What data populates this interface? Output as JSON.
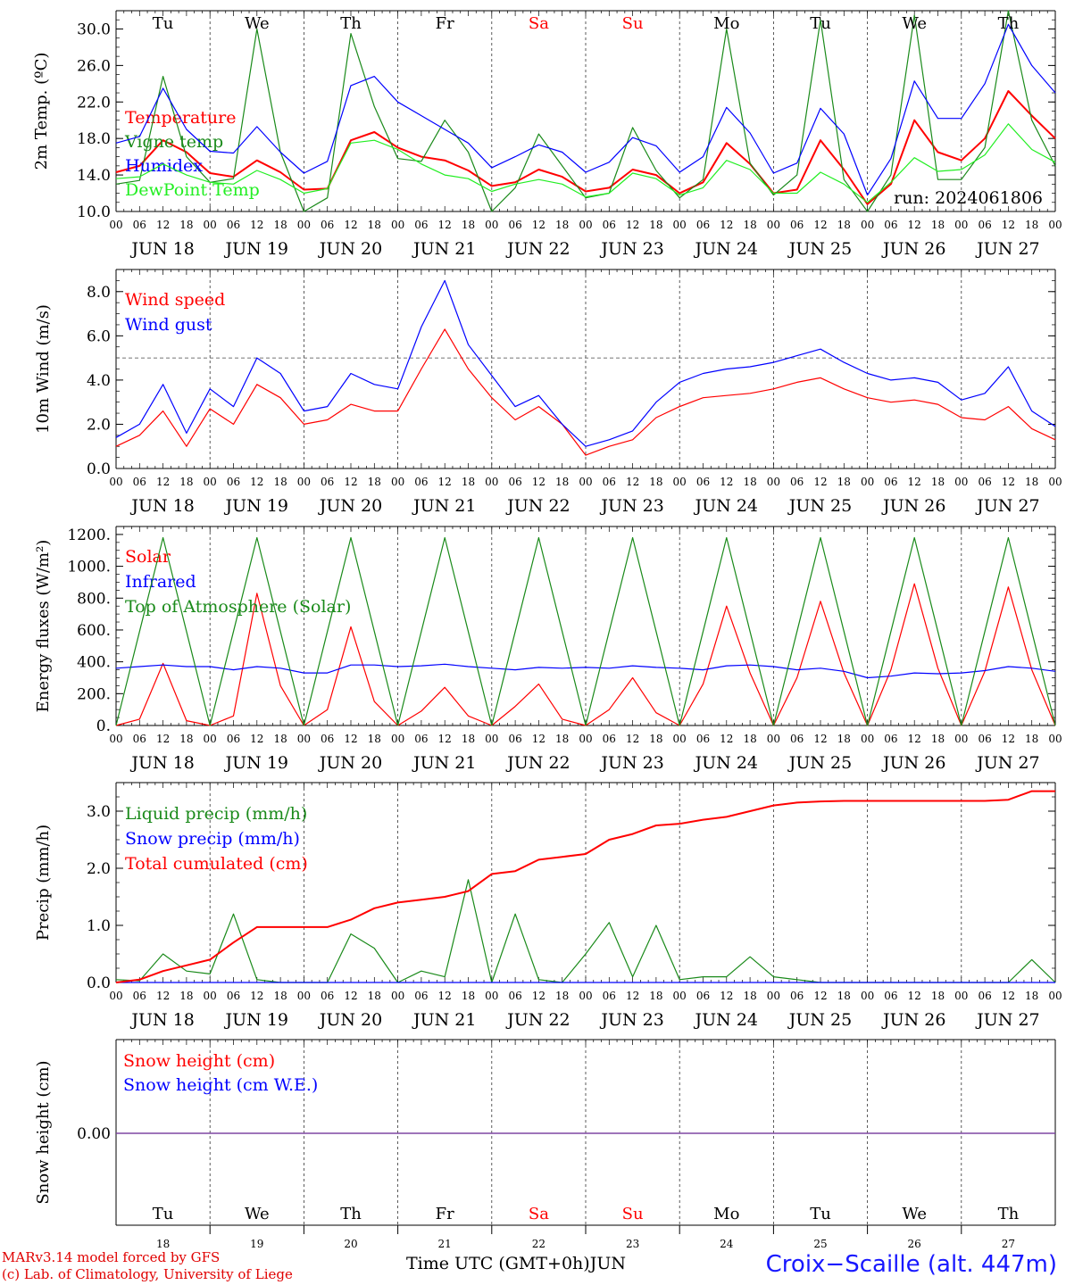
{
  "days": [
    {
      "abbr": "Tu",
      "date": "JUN 18",
      "num": "18",
      "weekend": false
    },
    {
      "abbr": "We",
      "date": "JUN 19",
      "num": "19",
      "weekend": false
    },
    {
      "abbr": "Th",
      "date": "JUN 20",
      "num": "20",
      "weekend": false
    },
    {
      "abbr": "Fr",
      "date": "JUN 21",
      "num": "21",
      "weekend": false
    },
    {
      "abbr": "Sa",
      "date": "JUN 22",
      "num": "22",
      "weekend": true
    },
    {
      "abbr": "Su",
      "date": "JUN 23",
      "num": "23",
      "weekend": true
    },
    {
      "abbr": "Mo",
      "date": "JUN 24",
      "num": "24",
      "weekend": false
    },
    {
      "abbr": "Tu",
      "date": "JUN 25",
      "num": "25",
      "weekend": false
    },
    {
      "abbr": "We",
      "date": "JUN 26",
      "num": "26",
      "weekend": false
    },
    {
      "abbr": "Th",
      "date": "JUN 27",
      "num": "27",
      "weekend": false
    }
  ],
  "hour_ticks": [
    "00",
    "06",
    "12",
    "18"
  ],
  "last_hour_tick": "00",
  "run_label": "run: 2024061806",
  "time_axis_label": "Time UTC (GMT+0h)",
  "month_label": "JUN",
  "credit_line1": "MARv3.14 model forced by GFS",
  "credit_line2": "(c) Lab. of Climatology, University of Liege",
  "station": "Croix−Scaille (alt. 447m)",
  "colors": {
    "red": "#ff0000",
    "blue": "#0000ff",
    "green": "#1a8a1a",
    "lightgreen": "#22ee22",
    "purple": "#7a3fa0"
  },
  "chart_data": [
    {
      "type": "line",
      "ylabel": "2m Temp. (ºC)",
      "ylim": [
        10,
        32
      ],
      "yticks": [
        10,
        14,
        18,
        22,
        26,
        30
      ],
      "ytick_labels": [
        "10.0",
        "14.0",
        "18.0",
        "22.0",
        "26.0",
        "30.0"
      ],
      "x": [
        "06-18 00",
        "06-18 06",
        "06-18 12",
        "06-18 18",
        "06-19 00",
        "06-19 06",
        "06-19 12",
        "06-19 18",
        "06-20 00",
        "06-20 06",
        "06-20 12",
        "06-20 18",
        "06-21 00",
        "06-21 06",
        "06-21 12",
        "06-21 18",
        "06-22 00",
        "06-22 06",
        "06-22 12",
        "06-22 18",
        "06-23 00",
        "06-23 06",
        "06-23 12",
        "06-23 18",
        "06-24 00",
        "06-24 06",
        "06-24 12",
        "06-24 18",
        "06-25 00",
        "06-25 06",
        "06-25 12",
        "06-25 18",
        "06-26 00",
        "06-26 06",
        "06-26 12",
        "06-26 18",
        "06-27 00",
        "06-27 06",
        "06-27 12",
        "06-27 18",
        "06-28 00"
      ],
      "series": [
        {
          "name": "Temperature",
          "color": "red",
          "values": [
            14.3,
            15.0,
            17.8,
            16.5,
            14.2,
            13.8,
            15.6,
            14.3,
            12.4,
            12.5,
            17.8,
            18.7,
            17.0,
            16.0,
            15.6,
            14.5,
            12.8,
            13.2,
            14.6,
            13.8,
            12.2,
            12.6,
            14.6,
            14.0,
            12.0,
            13.2,
            17.5,
            15.2,
            12.0,
            12.4,
            17.8,
            14.6,
            10.8,
            13.0,
            20.0,
            16.5,
            15.6,
            18.0,
            23.2,
            20.5,
            18.0
          ]
        },
        {
          "name": "Vigne temp",
          "color": "green",
          "values": [
            13.0,
            13.4,
            24.8,
            16.0,
            13.2,
            13.6,
            30.0,
            16.5,
            10.0,
            11.5,
            29.5,
            21.5,
            15.8,
            15.5,
            20.0,
            16.5,
            10.0,
            12.6,
            18.5,
            15.0,
            11.5,
            12.0,
            19.2,
            14.5,
            11.5,
            13.5,
            30.0,
            15.3,
            11.8,
            14.0,
            31.0,
            13.5,
            8.5,
            14.0,
            31.5,
            13.5,
            13.5,
            17.0,
            32.0,
            20.0,
            15.0
          ]
        },
        {
          "name": "Humidex",
          "color": "blue",
          "values": [
            17.5,
            18.2,
            23.5,
            19.0,
            16.6,
            16.4,
            19.3,
            16.5,
            14.2,
            15.5,
            23.8,
            24.8,
            22.0,
            20.5,
            19.0,
            17.5,
            14.8,
            16.0,
            17.3,
            16.5,
            14.3,
            15.4,
            18.1,
            17.2,
            14.3,
            16.0,
            21.4,
            18.6,
            14.2,
            15.3,
            21.3,
            18.5,
            11.8,
            15.8,
            24.3,
            20.2,
            20.2,
            24.0,
            30.5,
            26.0,
            23.0
          ]
        },
        {
          "name": "DewPoint Temp",
          "color": "lightgreen",
          "values": [
            13.6,
            13.8,
            15.2,
            14.0,
            13.2,
            13.0,
            14.5,
            13.5,
            12.0,
            12.5,
            17.5,
            17.8,
            16.8,
            15.2,
            14.0,
            13.6,
            12.2,
            13.0,
            13.5,
            13.0,
            11.6,
            12.0,
            14.2,
            13.6,
            11.8,
            12.6,
            15.6,
            14.6,
            12.0,
            12.0,
            14.3,
            13.0,
            11.0,
            13.2,
            15.9,
            14.4,
            14.6,
            16.2,
            19.6,
            16.8,
            15.4
          ]
        }
      ]
    },
    {
      "type": "line",
      "ylabel": "10m Wind (m/s)",
      "ylim": [
        0,
        9
      ],
      "yticks": [
        0,
        2,
        4,
        6,
        8
      ],
      "ytick_labels": [
        "0.0",
        "2.0",
        "4.0",
        "6.0",
        "8.0"
      ],
      "reference_line": 5.0,
      "x": [
        "06-18 00",
        "06-18 06",
        "06-18 12",
        "06-18 18",
        "06-19 00",
        "06-19 06",
        "06-19 12",
        "06-19 18",
        "06-20 00",
        "06-20 06",
        "06-20 12",
        "06-20 18",
        "06-21 00",
        "06-21 06",
        "06-21 12",
        "06-21 18",
        "06-22 00",
        "06-22 06",
        "06-22 12",
        "06-22 18",
        "06-23 00",
        "06-23 06",
        "06-23 12",
        "06-23 18",
        "06-24 00",
        "06-24 06",
        "06-24 12",
        "06-24 18",
        "06-25 00",
        "06-25 06",
        "06-25 12",
        "06-25 18",
        "06-26 00",
        "06-26 06",
        "06-26 12",
        "06-26 18",
        "06-27 00",
        "06-27 06",
        "06-27 12",
        "06-27 18",
        "06-28 00"
      ],
      "series": [
        {
          "name": "Wind speed",
          "color": "red",
          "values": [
            1.0,
            1.5,
            2.6,
            1.0,
            2.7,
            2.0,
            3.8,
            3.2,
            2.0,
            2.2,
            2.9,
            2.6,
            2.6,
            4.5,
            6.3,
            4.5,
            3.2,
            2.2,
            2.8,
            2.0,
            0.6,
            1.0,
            1.3,
            2.3,
            2.8,
            3.2,
            3.3,
            3.4,
            3.6,
            3.9,
            4.1,
            3.6,
            3.2,
            3.0,
            3.1,
            2.9,
            2.3,
            2.2,
            2.8,
            1.8,
            1.3
          ]
        },
        {
          "name": "Wind gust",
          "color": "blue",
          "values": [
            1.4,
            2.0,
            3.8,
            1.6,
            3.6,
            2.8,
            5.0,
            4.3,
            2.6,
            2.8,
            4.3,
            3.8,
            3.6,
            6.4,
            8.5,
            5.6,
            4.2,
            2.8,
            3.3,
            2.0,
            1.0,
            1.3,
            1.7,
            3.0,
            3.9,
            4.3,
            4.5,
            4.6,
            4.8,
            5.1,
            5.4,
            4.8,
            4.3,
            4.0,
            4.1,
            3.9,
            3.1,
            3.4,
            4.6,
            2.6,
            1.9
          ]
        }
      ]
    },
    {
      "type": "line",
      "ylabel": "Energy fluxes (W/m²)",
      "ylim": [
        0,
        1250
      ],
      "yticks": [
        0,
        200,
        400,
        600,
        800,
        1000,
        1200
      ],
      "ytick_labels": [
        "0.",
        "200.",
        "400.",
        "600.",
        "800.",
        "1000.",
        "1200."
      ],
      "x": [
        "06-18 00",
        "06-18 06",
        "06-18 12",
        "06-18 18",
        "06-19 00",
        "06-19 06",
        "06-19 12",
        "06-19 18",
        "06-20 00",
        "06-20 06",
        "06-20 12",
        "06-20 18",
        "06-21 00",
        "06-21 06",
        "06-21 12",
        "06-21 18",
        "06-22 00",
        "06-22 06",
        "06-22 12",
        "06-22 18",
        "06-23 00",
        "06-23 06",
        "06-23 12",
        "06-23 18",
        "06-24 00",
        "06-24 06",
        "06-24 12",
        "06-24 18",
        "06-25 00",
        "06-25 06",
        "06-25 12",
        "06-25 18",
        "06-26 00",
        "06-26 06",
        "06-26 12",
        "06-26 18",
        "06-27 00",
        "06-27 06",
        "06-27 12",
        "06-27 18",
        "06-28 00"
      ],
      "series": [
        {
          "name": "Solar",
          "color": "red",
          "values": [
            0,
            40,
            390,
            30,
            0,
            60,
            830,
            250,
            0,
            100,
            620,
            150,
            0,
            90,
            240,
            60,
            0,
            120,
            260,
            40,
            0,
            100,
            300,
            80,
            0,
            260,
            750,
            330,
            0,
            300,
            780,
            330,
            0,
            350,
            890,
            360,
            0,
            340,
            870,
            350,
            0
          ]
        },
        {
          "name": "Infrared",
          "color": "blue",
          "values": [
            360,
            370,
            380,
            370,
            370,
            350,
            370,
            360,
            330,
            330,
            380,
            380,
            370,
            375,
            385,
            370,
            360,
            350,
            365,
            360,
            365,
            360,
            375,
            365,
            360,
            350,
            375,
            380,
            370,
            350,
            360,
            340,
            300,
            310,
            330,
            325,
            330,
            345,
            370,
            360,
            340
          ]
        },
        {
          "name": "Top of Atmosphere (Solar)",
          "color": "green",
          "values": [
            0,
            590,
            1180,
            590,
            0,
            590,
            1180,
            590,
            0,
            590,
            1180,
            590,
            0,
            590,
            1180,
            590,
            0,
            590,
            1180,
            590,
            0,
            590,
            1180,
            590,
            0,
            590,
            1180,
            590,
            0,
            590,
            1180,
            590,
            0,
            590,
            1180,
            590,
            0,
            590,
            1180,
            590,
            0
          ]
        }
      ]
    },
    {
      "type": "line",
      "ylabel": "Precip (mm/h)",
      "ylim": [
        0,
        3.5
      ],
      "yticks": [
        0,
        1,
        2,
        3
      ],
      "ytick_labels": [
        "0.0",
        "1.0",
        "2.0",
        "3.0"
      ],
      "x": [
        "06-18 00",
        "06-18 06",
        "06-18 12",
        "06-18 18",
        "06-19 00",
        "06-19 06",
        "06-19 12",
        "06-19 18",
        "06-20 00",
        "06-20 06",
        "06-20 12",
        "06-20 18",
        "06-21 00",
        "06-21 06",
        "06-21 12",
        "06-21 18",
        "06-22 00",
        "06-22 06",
        "06-22 12",
        "06-22 18",
        "06-23 00",
        "06-23 06",
        "06-23 12",
        "06-23 18",
        "06-24 00",
        "06-24 06",
        "06-24 12",
        "06-24 18",
        "06-25 00",
        "06-25 06",
        "06-25 12",
        "06-25 18",
        "06-26 00",
        "06-26 06",
        "06-26 12",
        "06-26 18",
        "06-27 00",
        "06-27 06",
        "06-27 12",
        "06-27 18",
        "06-28 00"
      ],
      "series": [
        {
          "name": "Liquid precip (mm/h)",
          "color": "green",
          "values": [
            0.05,
            0.03,
            0.5,
            0.2,
            0.15,
            1.2,
            0.05,
            0.0,
            0.0,
            0.0,
            0.85,
            0.6,
            0.0,
            0.2,
            0.1,
            1.8,
            0.0,
            1.2,
            0.05,
            0.0,
            0.5,
            1.05,
            0.1,
            1.0,
            0.05,
            0.1,
            0.1,
            0.45,
            0.1,
            0.05,
            0.0,
            0.0,
            0.0,
            0.0,
            0.0,
            0.0,
            0.0,
            0.0,
            0.0,
            0.4,
            0.0
          ]
        },
        {
          "name": "Snow precip (mm/h)",
          "color": "blue",
          "values": [
            0,
            0,
            0,
            0,
            0,
            0,
            0,
            0,
            0,
            0,
            0,
            0,
            0,
            0,
            0,
            0,
            0,
            0,
            0,
            0,
            0,
            0,
            0,
            0,
            0,
            0,
            0,
            0,
            0,
            0,
            0,
            0,
            0,
            0,
            0,
            0,
            0,
            0,
            0,
            0,
            0
          ]
        },
        {
          "name": "Total cumulated (cm)",
          "color": "red",
          "values": [
            0.0,
            0.05,
            0.2,
            0.3,
            0.4,
            0.7,
            0.97,
            0.97,
            0.97,
            0.97,
            1.1,
            1.3,
            1.4,
            1.45,
            1.5,
            1.6,
            1.9,
            1.95,
            2.15,
            2.2,
            2.25,
            2.5,
            2.6,
            2.75,
            2.78,
            2.85,
            2.9,
            3.0,
            3.1,
            3.15,
            3.17,
            3.18,
            3.18,
            3.18,
            3.18,
            3.18,
            3.18,
            3.18,
            3.2,
            3.35,
            3.35
          ]
        }
      ]
    },
    {
      "type": "line",
      "ylabel": "Snow height (cm)",
      "yticks": [
        0
      ],
      "ytick_labels": [
        "0.00"
      ],
      "series": [
        {
          "name": "Snow height (cm)",
          "color": "red",
          "values": [
            0,
            0
          ]
        },
        {
          "name": "Snow height (cm W.E.)",
          "color": "blue",
          "values": [
            0,
            0
          ]
        }
      ]
    }
  ]
}
